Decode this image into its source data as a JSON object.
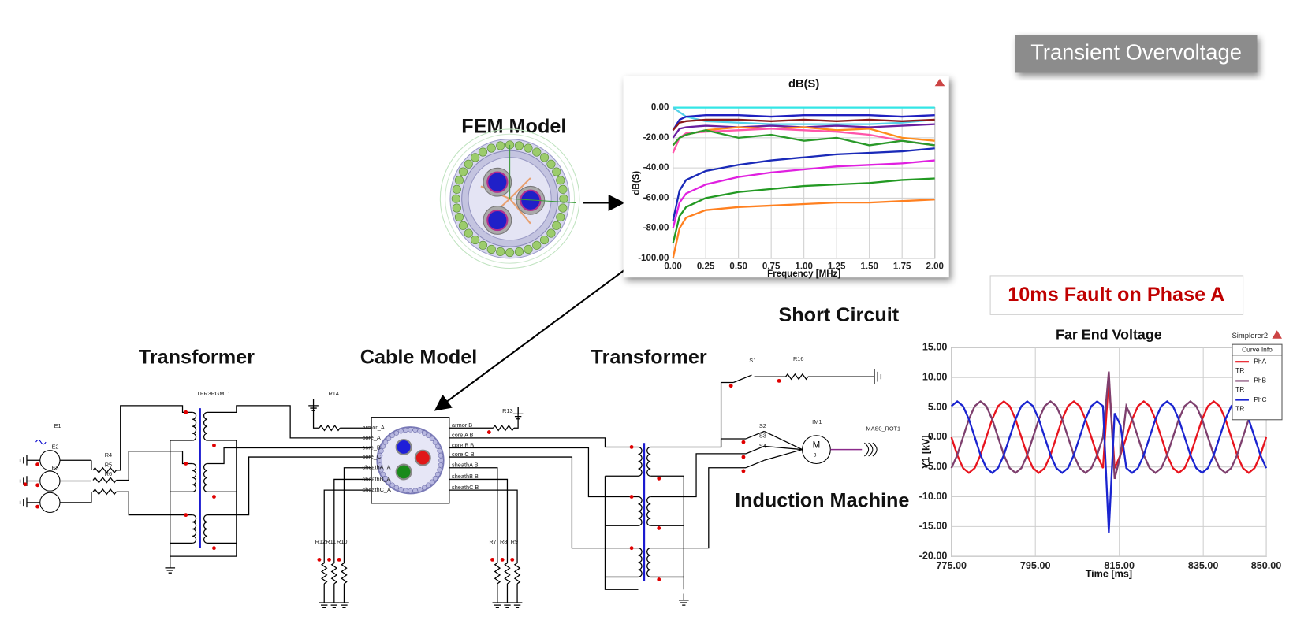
{
  "labels": {
    "badge": "Transient Overvoltage",
    "fem": "FEM Model",
    "fault": "10ms Fault on Phase A",
    "short_circuit": "Short Circuit",
    "transformer_left": "Transformer",
    "cable_model": "Cable Model",
    "transformer_right": "Transformer",
    "induction_machine": "Induction Machine"
  },
  "schematic": {
    "parts": [
      "E1",
      "E2",
      "E3",
      "R4",
      "R5",
      "R6",
      "TFR3PGML1",
      "R14",
      "R13",
      "R12",
      "R11",
      "R10",
      "R7",
      "R8",
      "R9",
      "S1",
      "R16",
      "S2",
      "S3",
      "S4",
      "IM1",
      "MAS0_ROT1",
      "M",
      "3~"
    ],
    "ports_left": [
      "armor_A",
      "core_A",
      "core_B",
      "core_C",
      "sheathA_A",
      "sheathB_A",
      "sheathC_A"
    ],
    "ports_right": [
      "armor B",
      "core A B",
      "core B B",
      "core C B",
      "sheathA B",
      "sheathB B",
      "sheathC B"
    ]
  },
  "chart_data": [
    {
      "type": "line",
      "title": "dB(S)",
      "x_label": "Frequency [MHz]",
      "y_label": "dB(S)",
      "grid": true,
      "x": [
        0,
        0.05,
        0.1,
        0.25,
        0.5,
        0.75,
        1,
        1.25,
        1.5,
        1.75,
        2
      ],
      "xlim": [
        0,
        2
      ],
      "xticks": [
        {
          "value": 0,
          "label": "0.00"
        },
        {
          "value": 0.25,
          "label": "0.25"
        },
        {
          "value": 0.5,
          "label": "0.50"
        },
        {
          "value": 0.75,
          "label": "0.75"
        },
        {
          "value": 1,
          "label": "1.00"
        },
        {
          "value": 1.25,
          "label": "1.25"
        },
        {
          "value": 1.5,
          "label": "1.50"
        },
        {
          "value": 1.75,
          "label": "1.75"
        },
        {
          "value": 2,
          "label": "2.00"
        }
      ],
      "ylim": [
        -100,
        0
      ],
      "yticks": [
        {
          "value": -100,
          "label": "-100.00"
        },
        {
          "value": -80,
          "label": "-80.00"
        },
        {
          "value": -60,
          "label": "-60.00"
        },
        {
          "value": -40,
          "label": "-40.00"
        },
        {
          "value": -20,
          "label": "-20.00"
        },
        {
          "value": 0,
          "label": "0.00"
        }
      ],
      "series": [
        {
          "color": "#33e6e6",
          "values": [
            0,
            0,
            0,
            0,
            0,
            0,
            0,
            0,
            0,
            0,
            0
          ]
        },
        {
          "color": "#55d0e8",
          "values": [
            0,
            -3,
            -6,
            -9,
            -10,
            -11,
            -11,
            -11,
            -11,
            -10,
            -8
          ]
        },
        {
          "color": "#2020c0",
          "values": [
            -15,
            -8,
            -6,
            -5,
            -5,
            -6,
            -5,
            -5,
            -5,
            -6,
            -5
          ]
        },
        {
          "color": "#8b1a1a",
          "values": [
            -15,
            -10,
            -9,
            -8,
            -8,
            -9,
            -8,
            -9,
            -8,
            -9,
            -8
          ]
        },
        {
          "color": "#6a1fa0",
          "values": [
            -20,
            -14,
            -13,
            -12,
            -13,
            -12,
            -13,
            -12,
            -13,
            -12,
            -11
          ]
        },
        {
          "color": "#ff8c1a",
          "values": [
            -25,
            -20,
            -18,
            -15,
            -13,
            -14,
            -13,
            -15,
            -14,
            -20,
            -22
          ]
        },
        {
          "color": "#ff55aa",
          "values": [
            -30,
            -20,
            -17,
            -16,
            -15,
            -14,
            -15,
            -16,
            -18,
            -22,
            -25
          ]
        },
        {
          "color": "#2a9a2a",
          "values": [
            -25,
            -20,
            -18,
            -15,
            -20,
            -18,
            -22,
            -20,
            -25,
            -22,
            -25
          ]
        },
        {
          "color": "#1a2ab8",
          "values": [
            -75,
            -55,
            -48,
            -42,
            -38,
            -35,
            -33,
            -31,
            -30,
            -29,
            -27
          ]
        },
        {
          "color": "#e020e0",
          "values": [
            -80,
            -63,
            -57,
            -51,
            -46,
            -43,
            -41,
            -39,
            -38,
            -37,
            -35
          ]
        },
        {
          "color": "#229922",
          "values": [
            -90,
            -72,
            -66,
            -60,
            -56,
            -54,
            -52,
            -51,
            -50,
            -48,
            -47
          ]
        },
        {
          "color": "#ff8020",
          "values": [
            -100,
            -80,
            -73,
            -68,
            -66,
            -65,
            -64,
            -63,
            -63,
            -62,
            -61
          ]
        }
      ]
    },
    {
      "type": "line",
      "title": "Far End Voltage",
      "x_label": "Time [ms]",
      "y_label": "Y1 [kV]",
      "tag": "Simplorer2",
      "legend_title": "Curve Info",
      "grid": true,
      "x": [
        775,
        776.39,
        777.78,
        779.17,
        780.56,
        781.94,
        783.33,
        784.72,
        786.11,
        787.5,
        788.89,
        790.28,
        791.67,
        793.06,
        794.44,
        795.83,
        797.22,
        798.61,
        800,
        801.39,
        802.78,
        804.17,
        805.56,
        806.94,
        808.33,
        809.72,
        811.11,
        812.5,
        813.89,
        815.28,
        816.67,
        818.06,
        819.44,
        820.83,
        822.22,
        823.61,
        825,
        826.39,
        827.78,
        829.17,
        830.56,
        831.94,
        833.33,
        834.72,
        836.11,
        837.5,
        838.89,
        840.28,
        841.67,
        843.06,
        844.44,
        845.83,
        847.22,
        848.61,
        850
      ],
      "xlim": [
        775,
        850
      ],
      "xticks": [
        {
          "value": 775,
          "label": "775.00"
        },
        {
          "value": 795,
          "label": "795.00"
        },
        {
          "value": 815,
          "label": "815.00"
        },
        {
          "value": 835,
          "label": "835.00"
        },
        {
          "value": 850,
          "label": "850.00"
        }
      ],
      "ylim": [
        -20,
        15
      ],
      "yticks": [
        {
          "value": -20,
          "label": "-20.00"
        },
        {
          "value": -15,
          "label": "-15.00"
        },
        {
          "value": -10,
          "label": "-10.00"
        },
        {
          "value": -5,
          "label": "-5.00"
        },
        {
          "value": 0,
          "label": "0.00"
        },
        {
          "value": 5,
          "label": "5.00"
        },
        {
          "value": 10,
          "label": "10.00"
        },
        {
          "value": 15,
          "label": "15.00"
        }
      ],
      "series": [
        {
          "name": "PhA",
          "sublabel": "TR",
          "color": "#e8141e",
          "values": [
            0,
            -3,
            -5.2,
            -6,
            -5.2,
            -3,
            0,
            3,
            5.2,
            6,
            5.2,
            3,
            0,
            -3,
            -5.2,
            -6,
            -5.2,
            -3,
            0,
            3,
            5.2,
            6,
            5.2,
            3,
            0,
            -3,
            -5.2,
            10,
            -5.2,
            -3,
            0,
            3,
            5.2,
            6,
            5.2,
            3,
            0,
            -3,
            -5.2,
            -6,
            -5.2,
            -3,
            0,
            3,
            5.2,
            6,
            5.2,
            3,
            0,
            -3,
            -5.2,
            -6,
            -5.2,
            -3,
            0
          ]
        },
        {
          "name": "PhB",
          "sublabel": "TR",
          "color": "#7e3f6e",
          "values": [
            -5.2,
            -3,
            0,
            3,
            5.2,
            6,
            5.2,
            3,
            0,
            -3,
            -5.2,
            -6,
            -5.2,
            -3,
            0,
            3,
            5.2,
            6,
            5.2,
            3,
            0,
            -3,
            -5.2,
            -6,
            -5.2,
            -3,
            0,
            11,
            -7,
            -3,
            5.2,
            3,
            0,
            -3,
            -5.2,
            -6,
            -5.2,
            -3,
            0,
            3,
            5.2,
            6,
            5.2,
            3,
            0,
            -3,
            -5.2,
            -6,
            -5.2,
            -3,
            0,
            3,
            5.2,
            6,
            5.2
          ]
        },
        {
          "name": "PhC",
          "sublabel": "TR",
          "color": "#1a24d0",
          "values": [
            5.2,
            6,
            5.2,
            3,
            0,
            -3,
            -5.2,
            -6,
            -5.2,
            -3,
            0,
            3,
            5.2,
            6,
            5.2,
            3,
            0,
            -3,
            -5.2,
            -6,
            -5.2,
            -3,
            0,
            3,
            5.2,
            6,
            5.2,
            -16,
            4,
            2,
            -5.2,
            -6,
            -5.2,
            -3,
            0,
            3,
            5.2,
            6,
            5.2,
            3,
            0,
            -3,
            -5.2,
            -6,
            -5.2,
            -3,
            0,
            3,
            5.2,
            6,
            5.2,
            3,
            0,
            -3,
            -5.2
          ]
        }
      ]
    }
  ]
}
